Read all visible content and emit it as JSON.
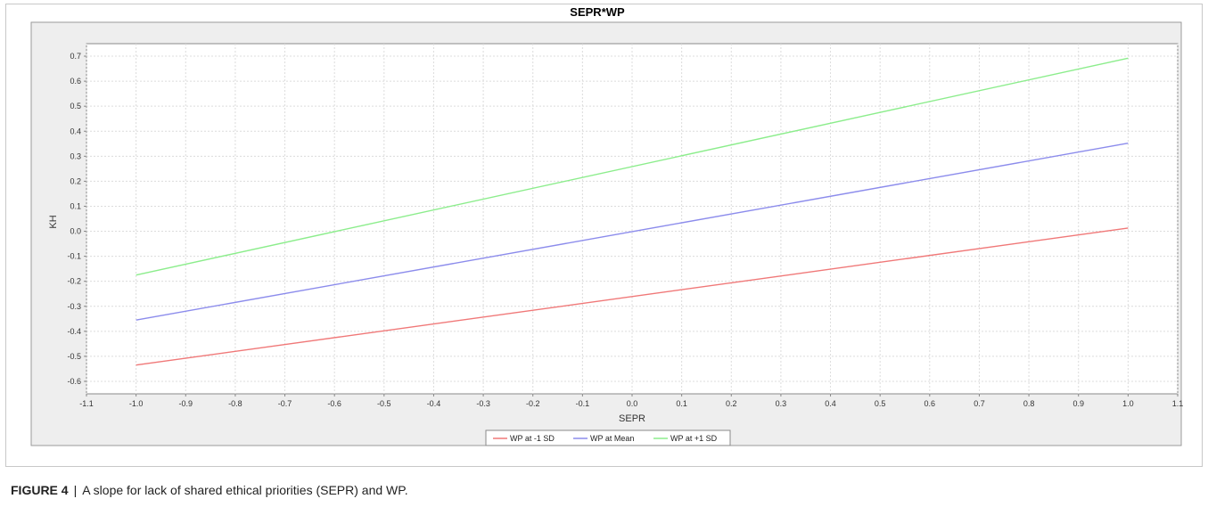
{
  "chart_data": {
    "type": "line",
    "title": "SEPR*WP",
    "xlabel": "SEPR",
    "ylabel": "KH",
    "xlim": [
      -1.1,
      1.1
    ],
    "ylim": [
      -0.65,
      0.75
    ],
    "x_ticks": [
      "-1.1",
      "-1.0",
      "-0.9",
      "-0.8",
      "-0.7",
      "-0.6",
      "-0.5",
      "-0.4",
      "-0.3",
      "-0.2",
      "-0.1",
      "0.0",
      "0.1",
      "0.2",
      "0.3",
      "0.4",
      "0.5",
      "0.6",
      "0.7",
      "0.8",
      "0.9",
      "1.0",
      "1.1"
    ],
    "y_ticks": [
      "-0.6",
      "-0.5",
      "-0.4",
      "-0.3",
      "-0.2",
      "-0.1",
      "0.0",
      "0.1",
      "0.2",
      "0.3",
      "0.4",
      "0.5",
      "0.6",
      "0.7"
    ],
    "grid": true,
    "legend_position": "bottom",
    "series": [
      {
        "name": "WP at -1 SD",
        "color": "#f07878",
        "x": [
          -1.0,
          1.0
        ],
        "y": [
          -0.535,
          0.013
        ]
      },
      {
        "name": "WP at Mean",
        "color": "#8c8cec",
        "x": [
          -1.0,
          1.0
        ],
        "y": [
          -0.355,
          0.352
        ]
      },
      {
        "name": "WP at +1 SD",
        "color": "#8ced8c",
        "x": [
          -1.0,
          1.0
        ],
        "y": [
          -0.175,
          0.692
        ]
      }
    ]
  },
  "caption": {
    "label": "FIGURE 4",
    "separator": "|",
    "text": "A slope for lack of shared ethical priorities (SEPR) and WP."
  }
}
